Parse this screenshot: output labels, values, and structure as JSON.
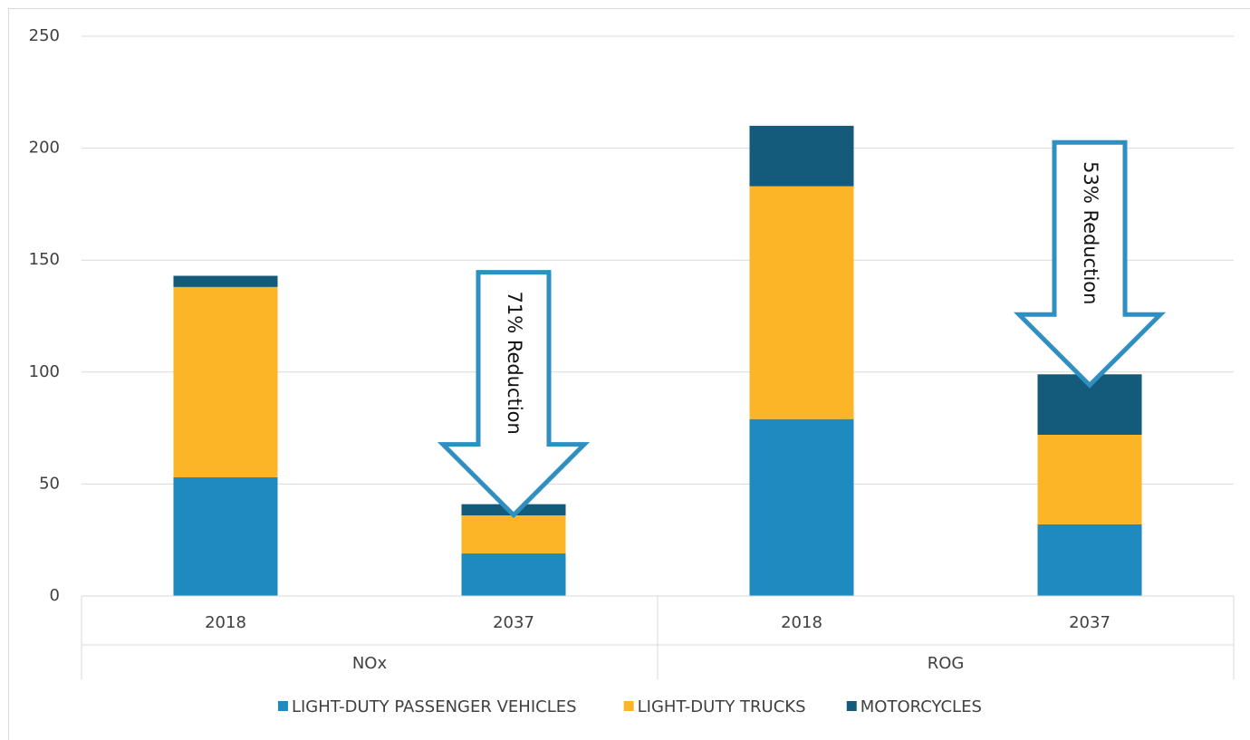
{
  "chart_data": {
    "type": "stacked_bar",
    "categories": [
      "2018",
      "2037",
      "2018",
      "2037"
    ],
    "groups": [
      "NOx",
      "ROG"
    ],
    "series": [
      {
        "name": "LIGHT-DUTY PASSENGER VEHICLES",
        "color": "#1f8ac0",
        "values": [
          53,
          19,
          79,
          32
        ]
      },
      {
        "name": "LIGHT-DUTY TRUCKS",
        "color": "#fbb527",
        "values": [
          85,
          17,
          104,
          40
        ]
      },
      {
        "name": "MOTORCYCLES",
        "color": "#145a7a",
        "values": [
          5,
          5,
          27,
          27
        ]
      }
    ],
    "ylim": [
      0,
      250
    ],
    "yticks": [
      0,
      50,
      100,
      150,
      200,
      250
    ],
    "grid": true,
    "legend": "bottom",
    "annotations": [
      {
        "text": "71% Reduction",
        "category": 1
      },
      {
        "text": "53% Reduction",
        "category": 3
      }
    ]
  }
}
